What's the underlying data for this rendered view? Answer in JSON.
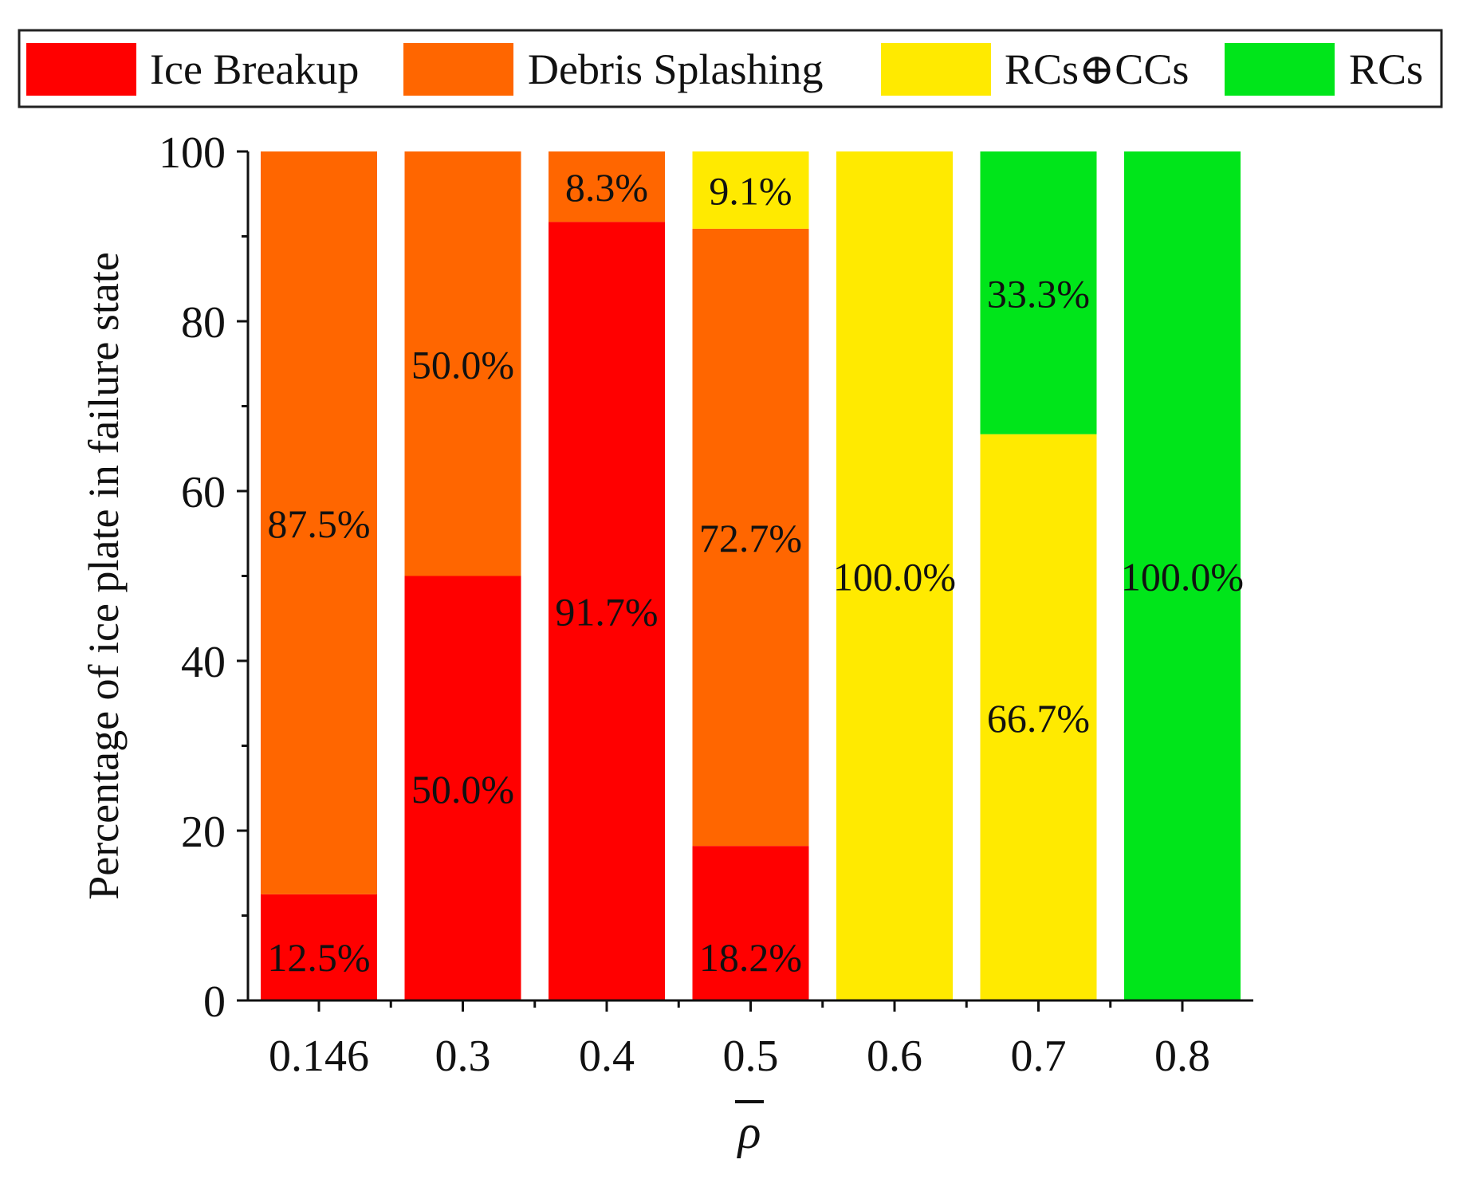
{
  "chart_data": {
    "type": "bar",
    "stacked": true,
    "categories": [
      "0.146",
      "0.3",
      "0.4",
      "0.5",
      "0.6",
      "0.7",
      "0.8"
    ],
    "series": [
      {
        "name": "Ice Breakup",
        "color": "#FF0000",
        "values": [
          12.5,
          50.0,
          91.7,
          18.2,
          0,
          0,
          0
        ],
        "labels": [
          "12.5%",
          "50.0%",
          "91.7%",
          "18.2%",
          "",
          "",
          ""
        ]
      },
      {
        "name": "Debris Splashing",
        "color": "#FF6600",
        "values": [
          87.5,
          50.0,
          8.3,
          72.7,
          0,
          0,
          0
        ],
        "labels": [
          "87.5%",
          "50.0%",
          "8.3%",
          "72.7%",
          "",
          "",
          ""
        ]
      },
      {
        "name": "RCs⊕CCs",
        "color": "#FFEA00",
        "values": [
          0,
          0,
          0,
          9.1,
          100.0,
          66.7,
          0
        ],
        "labels": [
          "",
          "",
          "",
          "9.1%",
          "100.0%",
          "66.7%",
          ""
        ]
      },
      {
        "name": "RCs",
        "color": "#00E51A",
        "values": [
          0,
          0,
          0,
          0,
          0,
          33.3,
          100.0
        ],
        "labels": [
          "",
          "",
          "",
          "",
          "",
          "33.3%",
          "100.0%"
        ]
      }
    ],
    "xlabel": "ρ",
    "ylabel": "Percentage of ice plate in failure state",
    "ylim": [
      0,
      100
    ],
    "yticks": [
      0,
      20,
      40,
      60,
      80,
      100
    ],
    "yticks_minor": [
      10,
      30,
      50,
      70,
      90
    ],
    "legend_position": "top",
    "grid": false
  }
}
